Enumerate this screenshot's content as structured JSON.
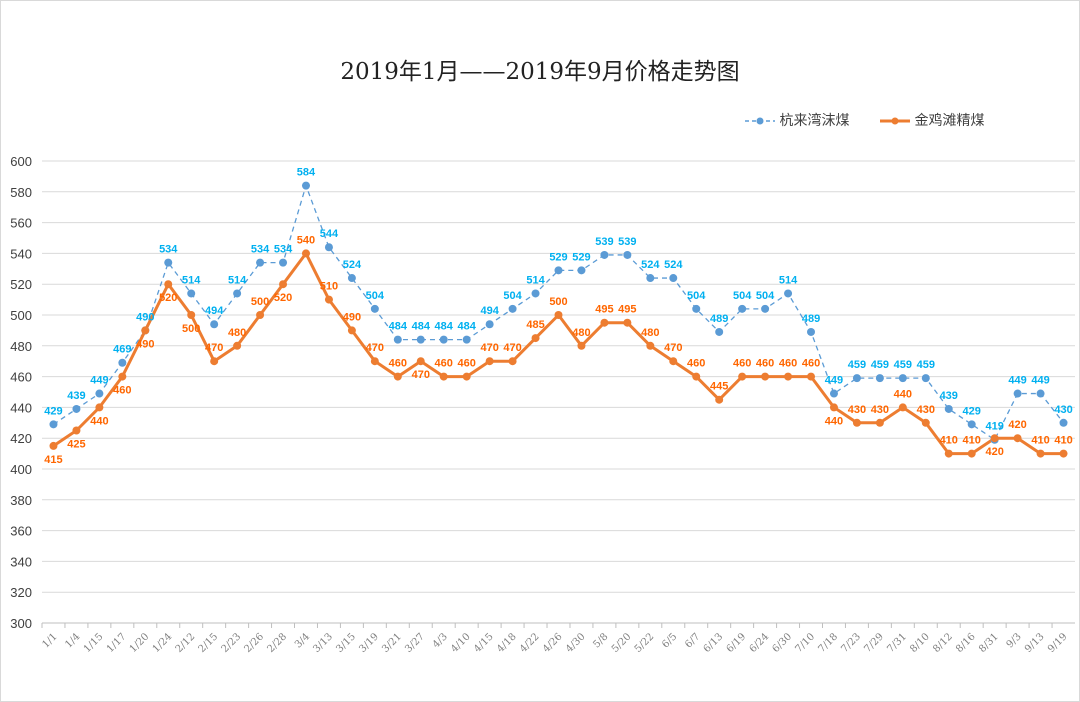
{
  "chart_data": {
    "type": "line",
    "title": "2019年1月——2019年9月价格走势图",
    "ylim": [
      300,
      600
    ],
    "yticks": [
      300,
      320,
      340,
      360,
      380,
      400,
      420,
      440,
      460,
      480,
      500,
      520,
      540,
      560,
      580,
      600
    ],
    "grid": true,
    "legend_position": "top-right",
    "categories": [
      "1/1",
      "1/4",
      "1/15",
      "1/17",
      "1/20",
      "1/24",
      "2/12",
      "2/15",
      "2/23",
      "2/26",
      "2/28",
      "3/4",
      "3/13",
      "3/15",
      "3/19",
      "3/21",
      "3/27",
      "4/3",
      "4/10",
      "4/15",
      "4/18",
      "4/22",
      "4/26",
      "4/30",
      "5/8",
      "5/20",
      "5/22",
      "6/5",
      "6/7",
      "6/13",
      "6/19",
      "6/24",
      "6/30",
      "7/10",
      "7/18",
      "7/23",
      "7/29",
      "7/31",
      "8/10",
      "8/12",
      "8/16",
      "8/31",
      "9/3",
      "9/13",
      "9/19"
    ],
    "series": [
      {
        "name": "杭来湾沫煤",
        "color": "#5b9bd5",
        "label_color": "#00b0f0",
        "style": "dashed-markers",
        "values": [
          429,
          439,
          449,
          469,
          490,
          534,
          514,
          494,
          514,
          534,
          534,
          584,
          544,
          524,
          504,
          484,
          484,
          484,
          484,
          494,
          504,
          514,
          529,
          529,
          539,
          539,
          524,
          524,
          504,
          489,
          504,
          504,
          514,
          489,
          449,
          459,
          459,
          459,
          459,
          439,
          429,
          419,
          449,
          449,
          430
        ]
      },
      {
        "name": "金鸡滩精煤",
        "color": "#ed7d31",
        "label_color": "#ff6600",
        "style": "solid-markers",
        "values": [
          415,
          425,
          440,
          460,
          490,
          520,
          500,
          470,
          480,
          500,
          520,
          540,
          510,
          490,
          470,
          460,
          470,
          460,
          460,
          470,
          470,
          485,
          500,
          480,
          495,
          495,
          480,
          470,
          460,
          445,
          460,
          460,
          460,
          460,
          440,
          430,
          430,
          440,
          430,
          410,
          410,
          420,
          420,
          410,
          410
        ]
      }
    ]
  }
}
